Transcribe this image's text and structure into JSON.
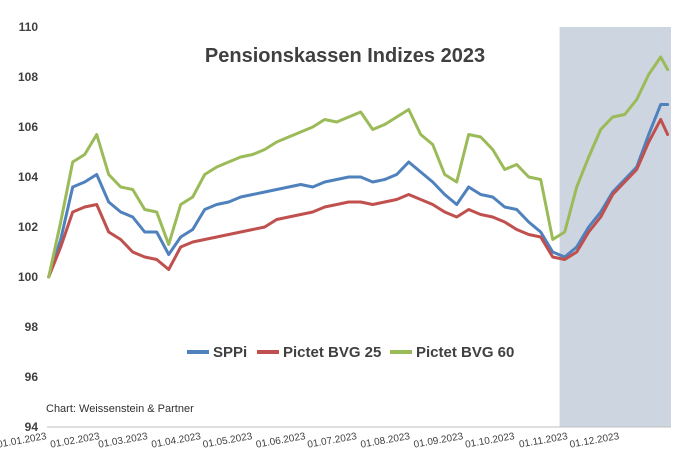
{
  "chart_data": {
    "type": "line",
    "title": "Pensionskassen Indizes 2023",
    "credit": "Chart: Weissenstein & Partner",
    "ylim": [
      94,
      110
    ],
    "y_ticks": [
      "94",
      "96",
      "98",
      "100",
      "102",
      "104",
      "106",
      "108",
      "110"
    ],
    "x_range": [
      "2023-01-01",
      "2023-12-31"
    ],
    "x_ticks": [
      {
        "date": "2023-01-01",
        "label": "01.01.2023"
      },
      {
        "date": "2023-02-01",
        "label": "01.02.2023"
      },
      {
        "date": "2023-03-01",
        "label": "01.03.2023"
      },
      {
        "date": "2023-04-01",
        "label": "01.04.2023"
      },
      {
        "date": "2023-05-01",
        "label": "01.05.2023"
      },
      {
        "date": "2023-06-01",
        "label": "01.06.2023"
      },
      {
        "date": "2023-07-01",
        "label": "01.07.2023"
      },
      {
        "date": "2023-08-01",
        "label": "01.08.2023"
      },
      {
        "date": "2023-09-01",
        "label": "01.09.2023"
      },
      {
        "date": "2023-10-01",
        "label": "01.10.2023"
      },
      {
        "date": "2023-11-01",
        "label": "01.11.2023"
      },
      {
        "date": "2023-12-01",
        "label": "01.12.2023"
      }
    ],
    "grid": false,
    "legend_position": "lower-center",
    "highlight": {
      "from": "2023-10-27",
      "to": "2023-12-31",
      "color": "#cdd5e0"
    },
    "x": [
      "2023-01-02",
      "2023-01-09",
      "2023-01-16",
      "2023-01-23",
      "2023-01-30",
      "2023-02-06",
      "2023-02-13",
      "2023-02-20",
      "2023-02-27",
      "2023-03-06",
      "2023-03-13",
      "2023-03-20",
      "2023-03-27",
      "2023-04-03",
      "2023-04-10",
      "2023-04-17",
      "2023-04-24",
      "2023-05-01",
      "2023-05-08",
      "2023-05-15",
      "2023-05-22",
      "2023-05-29",
      "2023-06-05",
      "2023-06-12",
      "2023-06-19",
      "2023-06-26",
      "2023-07-03",
      "2023-07-10",
      "2023-07-17",
      "2023-07-24",
      "2023-07-31",
      "2023-08-07",
      "2023-08-14",
      "2023-08-21",
      "2023-08-28",
      "2023-09-04",
      "2023-09-11",
      "2023-09-18",
      "2023-09-25",
      "2023-10-02",
      "2023-10-09",
      "2023-10-16",
      "2023-10-23",
      "2023-10-30",
      "2023-11-06",
      "2023-11-13",
      "2023-11-20",
      "2023-11-27",
      "2023-12-04",
      "2023-12-11",
      "2023-12-18",
      "2023-12-25",
      "2023-12-29"
    ],
    "series": [
      {
        "name": "SPPi",
        "color": "#4f81bd",
        "values": [
          100.0,
          101.5,
          103.6,
          103.8,
          104.1,
          103.0,
          102.6,
          102.4,
          101.8,
          101.8,
          100.9,
          101.6,
          101.9,
          102.7,
          102.9,
          103.0,
          103.2,
          103.3,
          103.4,
          103.5,
          103.6,
          103.7,
          103.6,
          103.8,
          103.9,
          104.0,
          104.0,
          103.8,
          103.9,
          104.1,
          104.6,
          104.2,
          103.8,
          103.3,
          102.9,
          103.6,
          103.3,
          103.2,
          102.8,
          102.7,
          102.2,
          101.8,
          101.0,
          100.8,
          101.2,
          102.0,
          102.6,
          103.4,
          103.9,
          104.4,
          105.7,
          106.9,
          106.9
        ]
      },
      {
        "name": "Pictet BVG 25",
        "color": "#c0504d",
        "values": [
          100.0,
          101.2,
          102.6,
          102.8,
          102.9,
          101.8,
          101.5,
          101.0,
          100.8,
          100.7,
          100.3,
          101.2,
          101.4,
          101.5,
          101.6,
          101.7,
          101.8,
          101.9,
          102.0,
          102.3,
          102.4,
          102.5,
          102.6,
          102.8,
          102.9,
          103.0,
          103.0,
          102.9,
          103.0,
          103.1,
          103.3,
          103.1,
          102.9,
          102.6,
          102.4,
          102.7,
          102.5,
          102.4,
          102.2,
          101.9,
          101.7,
          101.6,
          100.8,
          100.7,
          101.0,
          101.8,
          102.4,
          103.3,
          103.8,
          104.3,
          105.4,
          106.3,
          105.7
        ]
      },
      {
        "name": "Pictet BVG 60",
        "color": "#9bbb59",
        "values": [
          100.0,
          102.2,
          104.6,
          104.9,
          105.7,
          104.1,
          103.6,
          103.5,
          102.7,
          102.6,
          101.3,
          102.9,
          103.2,
          104.1,
          104.4,
          104.6,
          104.8,
          104.9,
          105.1,
          105.4,
          105.6,
          105.8,
          106.0,
          106.3,
          106.2,
          106.4,
          106.6,
          105.9,
          106.1,
          106.4,
          106.7,
          105.7,
          105.3,
          104.1,
          103.8,
          105.7,
          105.6,
          105.1,
          104.3,
          104.5,
          104.0,
          103.9,
          101.5,
          101.8,
          103.6,
          104.8,
          105.9,
          106.4,
          106.5,
          107.1,
          108.1,
          108.8,
          108.3
        ]
      }
    ]
  }
}
